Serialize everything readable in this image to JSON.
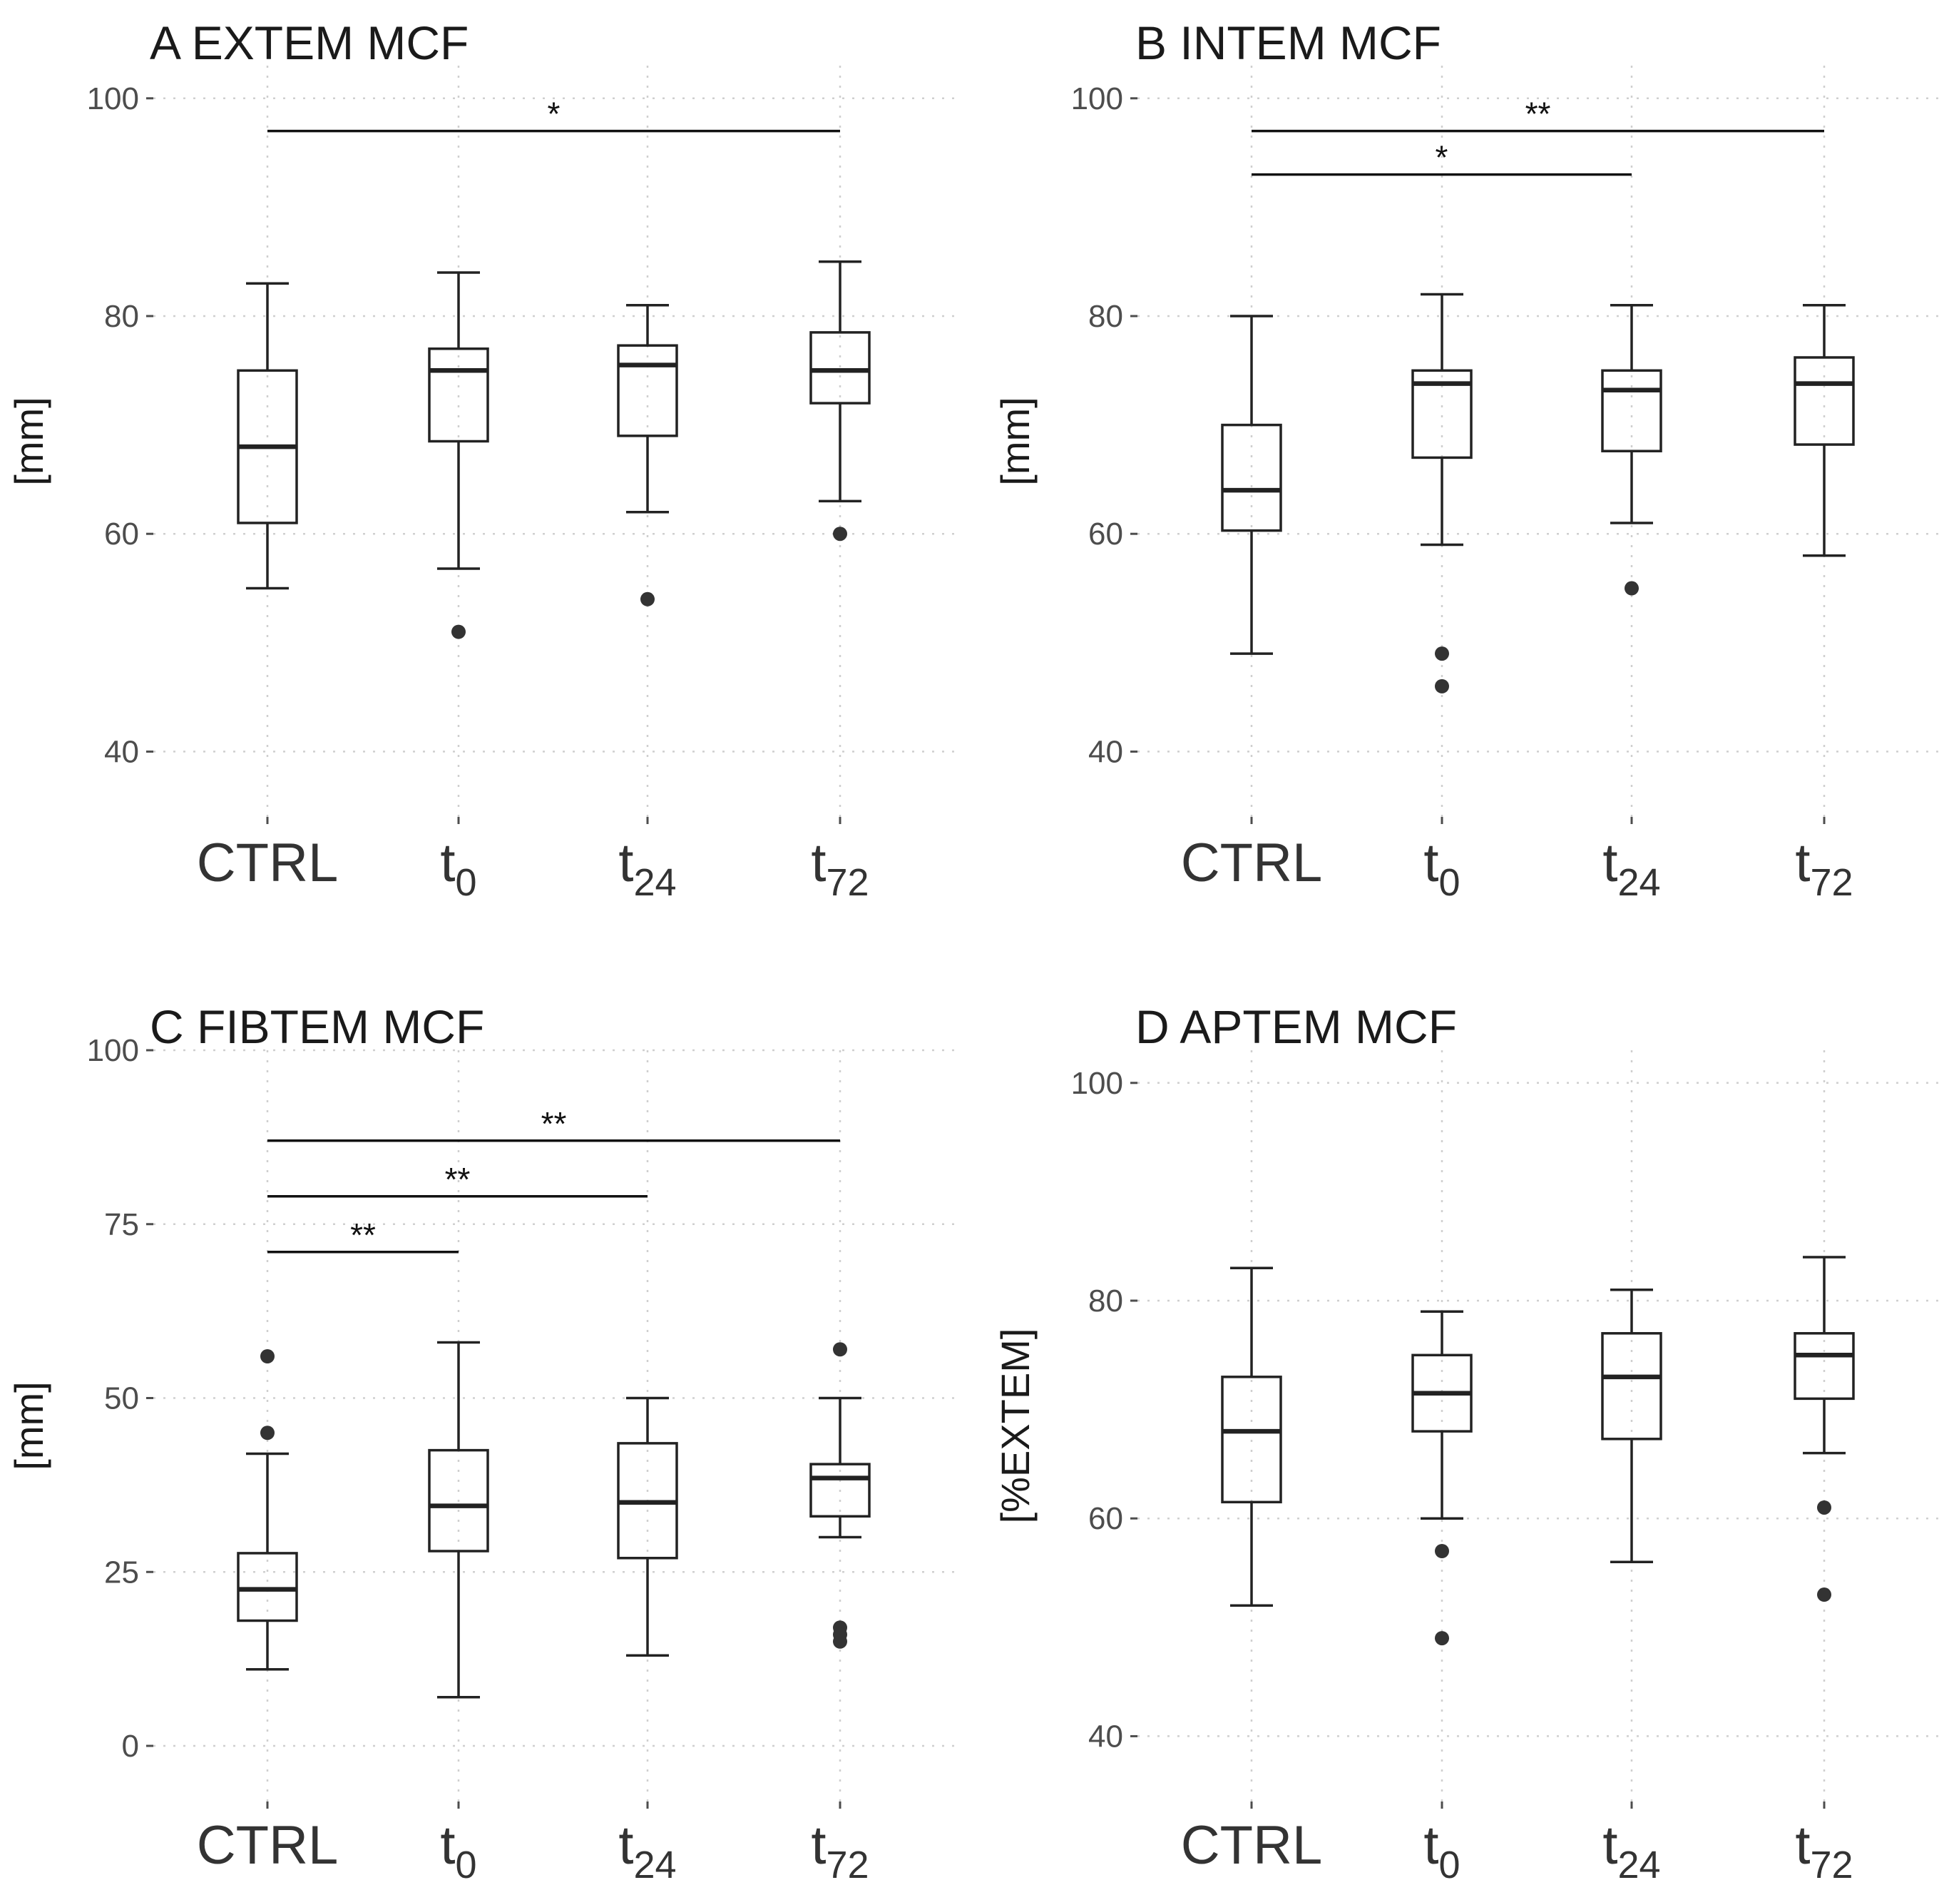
{
  "chart_data": [
    {
      "type": "box",
      "panel": "A",
      "title": "A EXTEM MCF",
      "ylabel": "[mm]",
      "ylim": [
        34,
        103
      ],
      "yticks": [
        40,
        60,
        80,
        100
      ],
      "categories": [
        {
          "label": "CTRL",
          "base": "CTRL",
          "sub": ""
        },
        {
          "label": "t0",
          "base": "t",
          "sub": "0"
        },
        {
          "label": "t24",
          "base": "t",
          "sub": "24"
        },
        {
          "label": "t72",
          "base": "t",
          "sub": "72"
        }
      ],
      "boxes": [
        {
          "group": "CTRL",
          "min": 55,
          "q1": 61,
          "median": 68,
          "q3": 75,
          "max": 83,
          "outliers": []
        },
        {
          "group": "t0",
          "min": 56.8,
          "q1": 68.5,
          "median": 75,
          "q3": 77,
          "max": 84,
          "outliers": [
            51
          ]
        },
        {
          "group": "t24",
          "min": 62,
          "q1": 69,
          "median": 75.5,
          "q3": 77.3,
          "max": 81,
          "outliers": [
            54
          ]
        },
        {
          "group": "t72",
          "min": 63,
          "q1": 72,
          "median": 75,
          "q3": 78.5,
          "max": 85,
          "outliers": [
            60
          ]
        }
      ],
      "significance": [
        {
          "from": 0,
          "to": 3,
          "label": "*",
          "y": 97
        }
      ]
    },
    {
      "type": "box",
      "panel": "B",
      "title": "B INTEM MCF",
      "ylabel": "[mm]",
      "ylim": [
        34,
        103
      ],
      "yticks": [
        40,
        60,
        80,
        100
      ],
      "categories": [
        {
          "label": "CTRL",
          "base": "CTRL",
          "sub": ""
        },
        {
          "label": "t0",
          "base": "t",
          "sub": "0"
        },
        {
          "label": "t24",
          "base": "t",
          "sub": "24"
        },
        {
          "label": "t72",
          "base": "t",
          "sub": "72"
        }
      ],
      "boxes": [
        {
          "group": "CTRL",
          "min": 49,
          "q1": 60.3,
          "median": 64,
          "q3": 70,
          "max": 80,
          "outliers": []
        },
        {
          "group": "t0",
          "min": 59,
          "q1": 67,
          "median": 73.8,
          "q3": 75,
          "max": 82,
          "outliers": [
            49,
            46
          ]
        },
        {
          "group": "t24",
          "min": 61,
          "q1": 67.6,
          "median": 73.2,
          "q3": 75,
          "max": 81,
          "outliers": [
            55
          ]
        },
        {
          "group": "t72",
          "min": 58,
          "q1": 68.2,
          "median": 73.8,
          "q3": 76.2,
          "max": 81,
          "outliers": []
        }
      ],
      "significance": [
        {
          "from": 0,
          "to": 3,
          "label": "**",
          "y": 97
        },
        {
          "from": 0,
          "to": 2,
          "label": "*",
          "y": 93
        }
      ]
    },
    {
      "type": "box",
      "panel": "C",
      "title": "C FIBTEM MCF",
      "ylabel": "[mm]",
      "ylim": [
        -8,
        100
      ],
      "yticks": [
        0,
        25,
        50,
        75,
        100
      ],
      "categories": [
        {
          "label": "CTRL",
          "base": "CTRL",
          "sub": ""
        },
        {
          "label": "t0",
          "base": "t",
          "sub": "0"
        },
        {
          "label": "t24",
          "base": "t",
          "sub": "24"
        },
        {
          "label": "t72",
          "base": "t",
          "sub": "72"
        }
      ],
      "boxes": [
        {
          "group": "CTRL",
          "min": 11,
          "q1": 18,
          "median": 22.5,
          "q3": 27.7,
          "max": 42,
          "outliers": [
            56,
            45
          ]
        },
        {
          "group": "t0",
          "min": 7,
          "q1": 28,
          "median": 34.5,
          "q3": 42.5,
          "max": 58,
          "outliers": []
        },
        {
          "group": "t24",
          "min": 13,
          "q1": 27,
          "median": 35,
          "q3": 43.5,
          "max": 50,
          "outliers": []
        },
        {
          "group": "t72",
          "min": 30,
          "q1": 33,
          "median": 38.5,
          "q3": 40.5,
          "max": 50,
          "outliers": [
            57,
            17,
            16,
            15
          ]
        }
      ],
      "significance": [
        {
          "from": 0,
          "to": 3,
          "label": "**",
          "y": 87
        },
        {
          "from": 0,
          "to": 2,
          "label": "**",
          "y": 79
        },
        {
          "from": 0,
          "to": 1,
          "label": "**",
          "y": 71
        }
      ]
    },
    {
      "type": "box",
      "panel": "D",
      "title": "D APTEM MCF",
      "ylabel": "[%EXTEM]",
      "ylim": [
        34,
        103
      ],
      "yticks": [
        40,
        60,
        80,
        100
      ],
      "categories": [
        {
          "label": "CTRL",
          "base": "CTRL",
          "sub": ""
        },
        {
          "label": "t0",
          "base": "t",
          "sub": "0"
        },
        {
          "label": "t24",
          "base": "t",
          "sub": "24"
        },
        {
          "label": "t72",
          "base": "t",
          "sub": "72"
        }
      ],
      "boxes": [
        {
          "group": "CTRL",
          "min": 52,
          "q1": 61.5,
          "median": 68,
          "q3": 73,
          "max": 83,
          "outliers": []
        },
        {
          "group": "t0",
          "min": 60,
          "q1": 68,
          "median": 71.5,
          "q3": 75,
          "max": 79,
          "outliers": [
            57,
            49
          ]
        },
        {
          "group": "t24",
          "min": 56,
          "q1": 67.3,
          "median": 73,
          "q3": 77,
          "max": 81,
          "outliers": []
        },
        {
          "group": "t72",
          "min": 66,
          "q1": 71,
          "median": 75,
          "q3": 77,
          "max": 84,
          "outliers": [
            61,
            53
          ]
        }
      ],
      "significance": []
    }
  ]
}
